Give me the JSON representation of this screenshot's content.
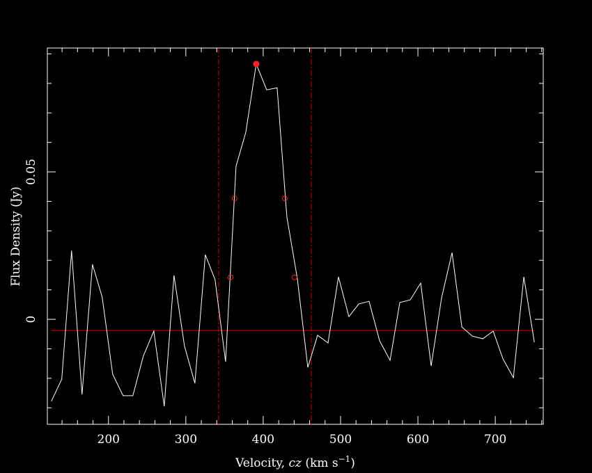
{
  "chart_data": {
    "type": "line",
    "xlabel": [
      "Velocity, ",
      "cz",
      " (km s",
      "−1",
      ")"
    ],
    "ylabel": "Flux Density (Jy)",
    "x": [
      126.1,
      139.6,
      152.3,
      165.8,
      179.3,
      191.9,
      205.4,
      218.9,
      231.5,
      245.0,
      258.6,
      272.1,
      284.7,
      298.2,
      311.7,
      325.2,
      337.8,
      351.4,
      364.9,
      377.5,
      391.0,
      404.5,
      418.0,
      430.6,
      444.1,
      457.7,
      470.3,
      483.8,
      497.3,
      510.8,
      523.4,
      536.9,
      550.5,
      564.0,
      576.6,
      590.1,
      603.6,
      617.1,
      630.6,
      644.1,
      656.8,
      670.3,
      683.8,
      697.3,
      709.9,
      723.4,
      736.9,
      750.5
    ],
    "series": [
      {
        "color": "#ffffff",
        "values": [
          -0.0278,
          -0.0203,
          0.0233,
          -0.0255,
          0.0186,
          0.0075,
          -0.0186,
          -0.0259,
          -0.0259,
          -0.0125,
          -0.004,
          -0.0295,
          0.0149,
          -0.009,
          -0.0217,
          0.0219,
          0.0134,
          -0.0144,
          0.0519,
          0.0634,
          0.0866,
          0.0778,
          0.0785,
          0.0347,
          0.0139,
          -0.0163,
          -0.0054,
          -0.008,
          0.0144,
          0.0009,
          0.0052,
          0.0061,
          -0.0073,
          -0.0139,
          0.0057,
          0.0066,
          0.0123,
          -0.0158,
          0.0073,
          0.0226,
          -0.0026,
          -0.0057,
          -0.0066,
          -0.004,
          -0.0134,
          -0.0198,
          0.0144,
          -0.0078
        ]
      }
    ],
    "baseline": -0.0038,
    "baseline_color": "#e00000",
    "vlines": [
      342.3,
      462.2
    ],
    "peak": {
      "x": 391.0,
      "y": 0.0866
    },
    "width_points": {
      "x": [
        357.7,
        363.1,
        427.9,
        440.5
      ],
      "y": [
        0.0142,
        0.041,
        0.041,
        0.0142
      ]
    },
    "marker_color": "#ff2020",
    "xlim": [
      121,
      762
    ],
    "ylim": [
      -0.0356,
      0.092
    ],
    "xticks": [
      200,
      300,
      400,
      500,
      600,
      700
    ],
    "xminorticks": [
      140,
      160,
      180,
      220,
      240,
      260,
      280,
      320,
      340,
      360,
      380,
      420,
      440,
      460,
      480,
      520,
      540,
      560,
      580,
      620,
      640,
      660,
      680,
      720,
      740,
      760
    ],
    "yticks": [
      0,
      0.05
    ],
    "yminorticks": [
      -0.03,
      -0.02,
      -0.01,
      0.01,
      0.02,
      0.03,
      0.04,
      0.06,
      0.07,
      0.08,
      0.09
    ]
  }
}
